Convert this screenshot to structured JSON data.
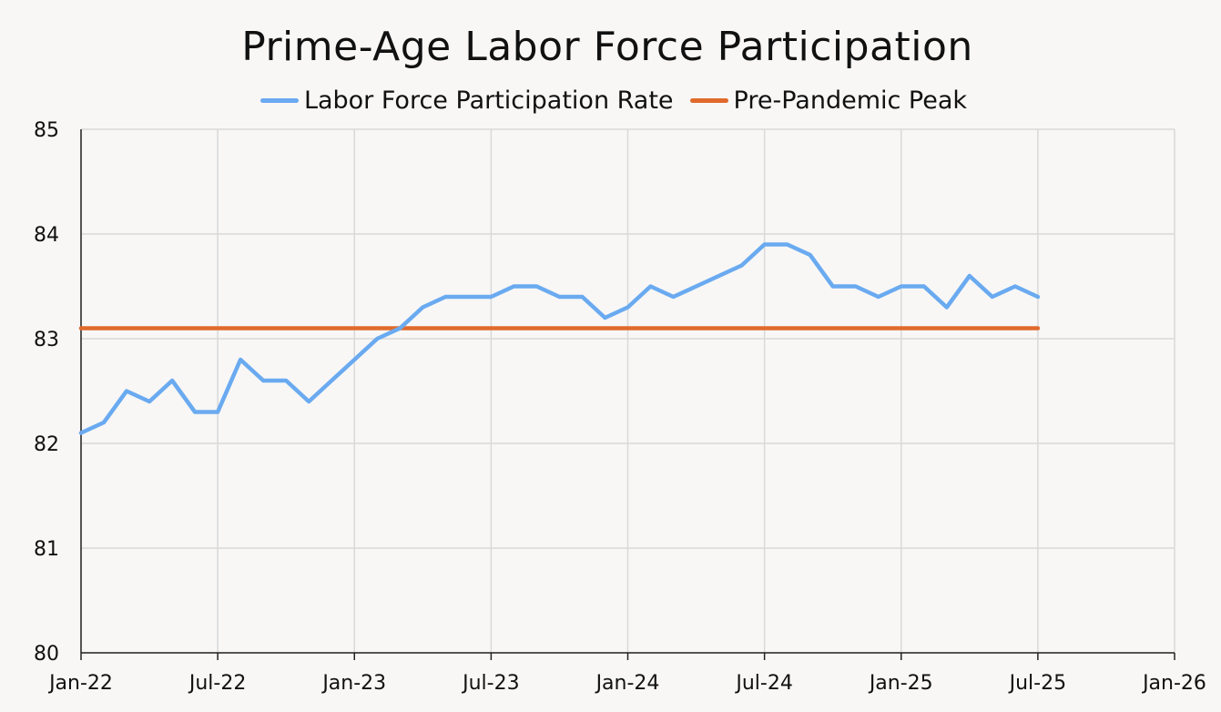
{
  "chart_data": {
    "type": "line",
    "title": "Prime-Age Labor Force Participation",
    "xlabel": "",
    "ylabel": "",
    "ylim": [
      80,
      85
    ],
    "y_ticks": [
      "80",
      "81",
      "82",
      "83",
      "84",
      "85"
    ],
    "x_tick_labels": [
      "Jan-22",
      "Jul-22",
      "Jan-23",
      "Jul-23",
      "Jan-24",
      "Jul-24",
      "Jan-25",
      "Jul-25",
      "Jan-26"
    ],
    "x_range": [
      "2022-01",
      "2026-01"
    ],
    "grid": true,
    "legend": "top-center",
    "x": [
      "2022-01",
      "2022-02",
      "2022-03",
      "2022-04",
      "2022-05",
      "2022-06",
      "2022-07",
      "2022-08",
      "2022-09",
      "2022-10",
      "2022-11",
      "2022-12",
      "2023-01",
      "2023-02",
      "2023-03",
      "2023-04",
      "2023-05",
      "2023-06",
      "2023-07",
      "2023-08",
      "2023-09",
      "2023-10",
      "2023-11",
      "2023-12",
      "2024-01",
      "2024-02",
      "2024-03",
      "2024-04",
      "2024-05",
      "2024-06",
      "2024-07",
      "2024-08",
      "2024-09",
      "2024-10",
      "2024-11",
      "2024-12",
      "2025-01",
      "2025-02",
      "2025-03",
      "2025-04",
      "2025-05",
      "2025-06",
      "2025-07"
    ],
    "series": [
      {
        "name": "Labor Force Participation Rate",
        "color": "#6aaaf0",
        "values": [
          82.1,
          82.2,
          82.5,
          82.4,
          82.6,
          82.3,
          82.3,
          82.8,
          82.6,
          82.6,
          82.4,
          82.6,
          82.8,
          83.0,
          83.1,
          83.3,
          83.4,
          83.4,
          83.4,
          83.5,
          83.5,
          83.4,
          83.4,
          83.2,
          83.3,
          83.5,
          83.4,
          83.5,
          83.6,
          83.7,
          83.9,
          83.9,
          83.8,
          83.5,
          83.5,
          83.4,
          83.5,
          83.5,
          83.3,
          83.6,
          83.4,
          83.5,
          83.4
        ]
      },
      {
        "name": "Pre-Pandemic Peak",
        "color": "#e06a2c",
        "values": [
          83.1,
          83.1,
          83.1,
          83.1,
          83.1,
          83.1,
          83.1,
          83.1,
          83.1,
          83.1,
          83.1,
          83.1,
          83.1,
          83.1,
          83.1,
          83.1,
          83.1,
          83.1,
          83.1,
          83.1,
          83.1,
          83.1,
          83.1,
          83.1,
          83.1,
          83.1,
          83.1,
          83.1,
          83.1,
          83.1,
          83.1,
          83.1,
          83.1,
          83.1,
          83.1,
          83.1,
          83.1,
          83.1,
          83.1,
          83.1,
          83.1,
          83.1,
          83.1
        ]
      }
    ]
  }
}
